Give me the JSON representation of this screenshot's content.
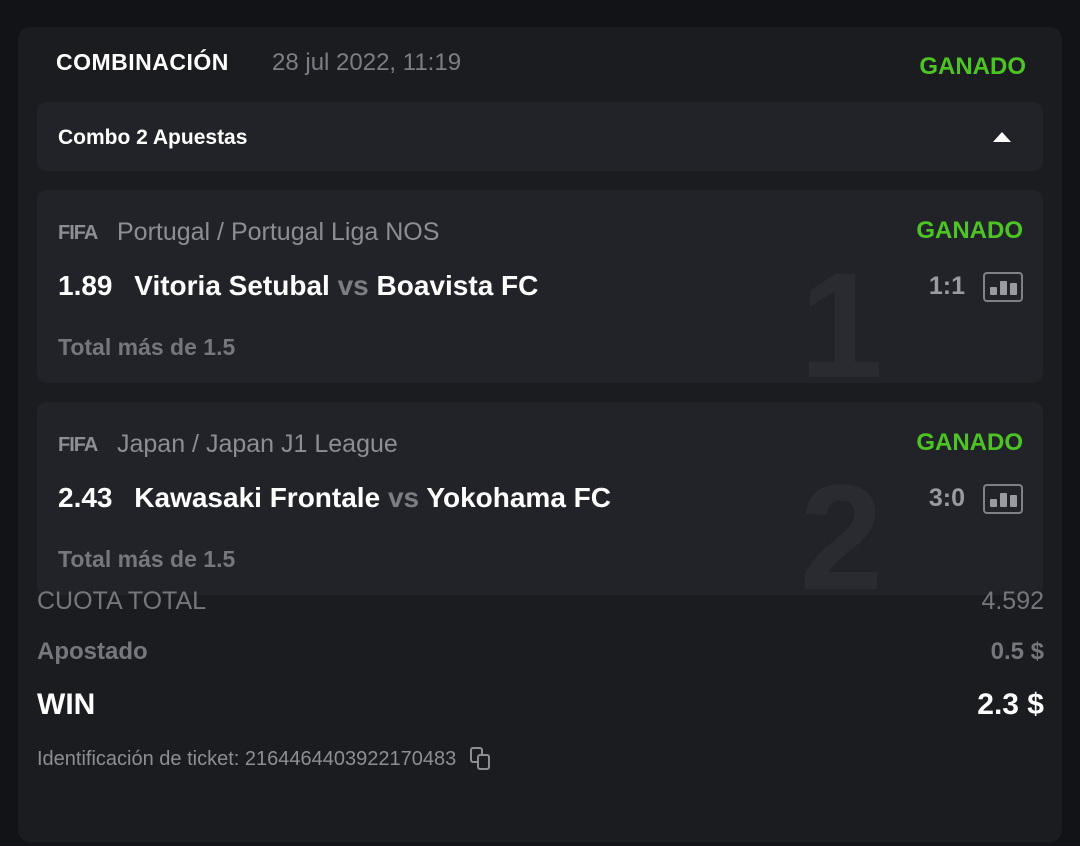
{
  "header": {
    "type": "COMBINACIÓN",
    "date": "28 jul 2022, 11:19",
    "status": "GANADO"
  },
  "combo": {
    "label": "Combo 2 Apuestas",
    "toggle_icon": "caret-up-icon"
  },
  "bets": [
    {
      "index": "1",
      "logo": "FIFA",
      "league": "Portugal / Portugal Liga NOS",
      "status": "GANADO",
      "odd": "1.89",
      "home": "Vitoria Setubal",
      "vs": "vs",
      "away": "Boavista FC",
      "score": "1:1",
      "market": "Total más de 1.5"
    },
    {
      "index": "2",
      "logo": "FIFA",
      "league": "Japan / Japan J1 League",
      "status": "GANADO",
      "odd": "2.43",
      "home": "Kawasaki Frontale",
      "vs": "vs",
      "away": "Yokohama FC",
      "score": "3:0",
      "market": "Total más de 1.5"
    }
  ],
  "summary": {
    "total_odds_label": "CUOTA TOTAL",
    "total_odds": "4.592",
    "stake_label": "Apostado",
    "stake": "0.5 $",
    "win_label": "WIN",
    "win": "2.3 $"
  },
  "ticket": {
    "label": "Identificación de ticket: 2164464403922170483"
  },
  "colors": {
    "won": "#4cc524"
  }
}
